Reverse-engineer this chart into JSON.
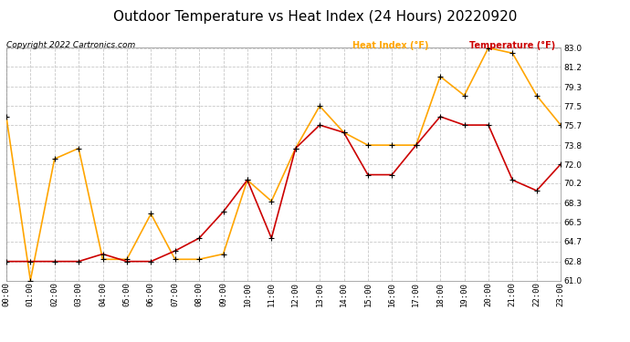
{
  "title": "Outdoor Temperature vs Heat Index (24 Hours) 20220920",
  "copyright": "Copyright 2022 Cartronics.com",
  "legend_heat_index": "Heat Index (°F)",
  "legend_temperature": "Temperature (°F)",
  "hours": [
    "00:00",
    "01:00",
    "02:00",
    "03:00",
    "04:00",
    "05:00",
    "06:00",
    "07:00",
    "08:00",
    "09:00",
    "10:00",
    "11:00",
    "12:00",
    "13:00",
    "14:00",
    "15:00",
    "16:00",
    "17:00",
    "18:00",
    "19:00",
    "20:00",
    "21:00",
    "22:00",
    "23:00"
  ],
  "heat_index": [
    76.5,
    61.0,
    72.5,
    73.5,
    63.0,
    63.0,
    67.3,
    63.0,
    63.0,
    63.5,
    70.5,
    68.5,
    73.5,
    77.5,
    75.0,
    73.8,
    73.8,
    73.8,
    80.3,
    78.5,
    83.0,
    82.5,
    78.5,
    75.7
  ],
  "temperature": [
    62.8,
    62.8,
    62.8,
    62.8,
    63.5,
    62.8,
    62.8,
    63.8,
    65.0,
    67.5,
    70.5,
    65.0,
    73.5,
    75.7,
    75.0,
    71.0,
    71.0,
    73.8,
    76.5,
    75.7,
    75.7,
    70.5,
    69.5,
    72.0
  ],
  "ylim": [
    61.0,
    83.0
  ],
  "yticks": [
    61.0,
    62.8,
    64.7,
    66.5,
    68.3,
    70.2,
    72.0,
    73.8,
    75.7,
    77.5,
    79.3,
    81.2,
    83.0
  ],
  "heat_index_color": "#FFA500",
  "temperature_color": "#CC0000",
  "marker_color": "black",
  "background_color": "#ffffff",
  "grid_color": "#C8C8C8",
  "title_fontsize": 11,
  "legend_fontsize": 7,
  "tick_fontsize": 6.5,
  "copyright_fontsize": 6.5
}
